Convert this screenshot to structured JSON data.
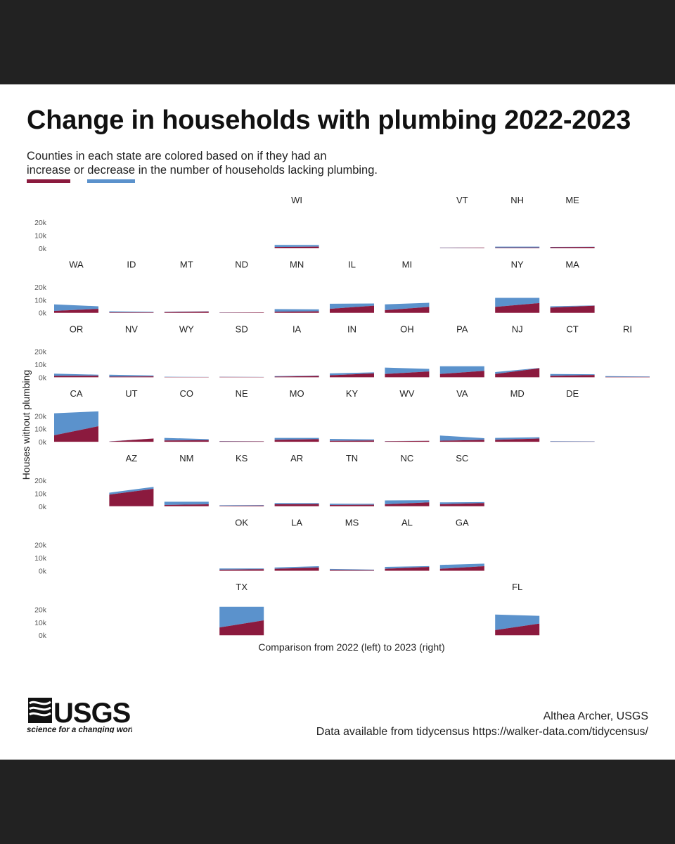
{
  "title": "Change in households with plumbing 2022-2023",
  "subtitle": {
    "line1": "Counties in each state are colored based on if they had an",
    "increase_word": "increase",
    "or_word": " or ",
    "decrease_word": "decrease",
    "line2_rest": " in the number of households lacking plumbing."
  },
  "colors": {
    "increase": "#8B1A3E",
    "decrease": "#5B92CC",
    "background": "#ffffff",
    "frame": "#222222"
  },
  "chart_data": {
    "type": "area",
    "layout": "state-grid small multiples (stacked area, 2 points each)",
    "x": [
      2022,
      2023
    ],
    "xlabel": "Comparison from 2022 (left) to 2023 (right)",
    "ylabel": "Houses without plumbing",
    "ylim": [
      0,
      25000
    ],
    "yticks": [
      "0k",
      "10k",
      "20k"
    ],
    "series_names": [
      "increase",
      "decrease"
    ],
    "states": [
      {
        "st": "WI",
        "row": 0,
        "col": 5,
        "inc": [
          1000,
          1300
        ],
        "dec": [
          1600,
          1200
        ]
      },
      {
        "st": "VT",
        "row": 0,
        "col": 8,
        "inc": [
          200,
          400
        ],
        "dec": [
          300,
          100
        ]
      },
      {
        "st": "NH",
        "row": 0,
        "col": 9,
        "inc": [
          400,
          500
        ],
        "dec": [
          900,
          800
        ]
      },
      {
        "st": "ME",
        "row": 0,
        "col": 10,
        "inc": [
          800,
          1000
        ],
        "dec": [
          300,
          200
        ]
      },
      {
        "st": "WA",
        "row": 1,
        "col": 1,
        "inc": [
          1500,
          3000
        ],
        "dec": [
          5000,
          2000
        ]
      },
      {
        "st": "ID",
        "row": 1,
        "col": 2,
        "inc": [
          300,
          300
        ],
        "dec": [
          800,
          400
        ]
      },
      {
        "st": "MT",
        "row": 1,
        "col": 3,
        "inc": [
          500,
          900
        ],
        "dec": [
          300,
          200
        ]
      },
      {
        "st": "ND",
        "row": 1,
        "col": 4,
        "inc": [
          200,
          300
        ],
        "dec": [
          100,
          100
        ]
      },
      {
        "st": "MN",
        "row": 1,
        "col": 5,
        "inc": [
          800,
          1100
        ],
        "dec": [
          2000,
          1500
        ]
      },
      {
        "st": "IL",
        "row": 1,
        "col": 6,
        "inc": [
          3000,
          5500
        ],
        "dec": [
          4000,
          1700
        ]
      },
      {
        "st": "MI",
        "row": 1,
        "col": 7,
        "inc": [
          2000,
          4500
        ],
        "dec": [
          4500,
          3200
        ]
      },
      {
        "st": "NY",
        "row": 1,
        "col": 9,
        "inc": [
          4500,
          7500
        ],
        "dec": [
          7000,
          4000
        ]
      },
      {
        "st": "MA",
        "row": 1,
        "col": 10,
        "inc": [
          4000,
          5500
        ],
        "dec": [
          1000,
          200
        ]
      },
      {
        "st": "OR",
        "row": 2,
        "col": 1,
        "inc": [
          1000,
          1200
        ],
        "dec": [
          1800,
          800
        ]
      },
      {
        "st": "NV",
        "row": 2,
        "col": 2,
        "inc": [
          500,
          700
        ],
        "dec": [
          1500,
          700
        ]
      },
      {
        "st": "WY",
        "row": 2,
        "col": 3,
        "inc": [
          200,
          200
        ],
        "dec": [
          200,
          100
        ]
      },
      {
        "st": "SD",
        "row": 2,
        "col": 4,
        "inc": [
          300,
          200
        ],
        "dec": [
          100,
          100
        ]
      },
      {
        "st": "IA",
        "row": 2,
        "col": 5,
        "inc": [
          500,
          1000
        ],
        "dec": [
          400,
          300
        ]
      },
      {
        "st": "IN",
        "row": 2,
        "col": 6,
        "inc": [
          1500,
          3000
        ],
        "dec": [
          1500,
          800
        ]
      },
      {
        "st": "OH",
        "row": 2,
        "col": 7,
        "inc": [
          2500,
          4500
        ],
        "dec": [
          5000,
          2000
        ]
      },
      {
        "st": "PA",
        "row": 2,
        "col": 8,
        "inc": [
          2500,
          5000
        ],
        "dec": [
          6000,
          3500
        ]
      },
      {
        "st": "NJ",
        "row": 2,
        "col": 9,
        "inc": [
          2500,
          7000
        ],
        "dec": [
          1500,
          200
        ]
      },
      {
        "st": "CT",
        "row": 2,
        "col": 10,
        "inc": [
          1000,
          1800
        ],
        "dec": [
          1500,
          500
        ]
      },
      {
        "st": "RI",
        "row": 2,
        "col": 11,
        "inc": [
          300,
          300
        ],
        "dec": [
          600,
          300
        ]
      },
      {
        "st": "CA",
        "row": 3,
        "col": 1,
        "inc": [
          5000,
          12000
        ],
        "dec": [
          17000,
          11500
        ]
      },
      {
        "st": "UT",
        "row": 3,
        "col": 2,
        "inc": [
          200,
          2500
        ],
        "dec": [
          100,
          100
        ]
      },
      {
        "st": "CO",
        "row": 3,
        "col": 3,
        "inc": [
          1000,
          1200
        ],
        "dec": [
          2000,
          800
        ]
      },
      {
        "st": "NE",
        "row": 3,
        "col": 4,
        "inc": [
          300,
          300
        ],
        "dec": [
          200,
          100
        ]
      },
      {
        "st": "MO",
        "row": 3,
        "col": 5,
        "inc": [
          1500,
          2000
        ],
        "dec": [
          1500,
          1000
        ]
      },
      {
        "st": "KY",
        "row": 3,
        "col": 6,
        "inc": [
          700,
          1000
        ],
        "dec": [
          1500,
          800
        ]
      },
      {
        "st": "WV",
        "row": 3,
        "col": 7,
        "inc": [
          400,
          700
        ],
        "dec": [
          100,
          100
        ]
      },
      {
        "st": "VA",
        "row": 3,
        "col": 8,
        "inc": [
          800,
          1500
        ],
        "dec": [
          4000,
          1300
        ]
      },
      {
        "st": "MD",
        "row": 3,
        "col": 9,
        "inc": [
          1500,
          2500
        ],
        "dec": [
          1500,
          1000
        ]
      },
      {
        "st": "DE",
        "row": 3,
        "col": 10,
        "inc": [
          100,
          100
        ],
        "dec": [
          400,
          300
        ]
      },
      {
        "st": "AZ",
        "row": 4,
        "col": 2,
        "inc": [
          9000,
          13500
        ],
        "dec": [
          1500,
          1500
        ]
      },
      {
        "st": "NM",
        "row": 4,
        "col": 3,
        "inc": [
          1000,
          1500
        ],
        "dec": [
          2500,
          2000
        ]
      },
      {
        "st": "KS",
        "row": 4,
        "col": 4,
        "inc": [
          400,
          600
        ],
        "dec": [
          400,
          400
        ]
      },
      {
        "st": "AR",
        "row": 4,
        "col": 5,
        "inc": [
          1500,
          1700
        ],
        "dec": [
          1000,
          800
        ]
      },
      {
        "st": "TN",
        "row": 4,
        "col": 6,
        "inc": [
          1000,
          1200
        ],
        "dec": [
          1000,
          700
        ]
      },
      {
        "st": "NC",
        "row": 4,
        "col": 7,
        "inc": [
          1500,
          3000
        ],
        "dec": [
          3000,
          1700
        ]
      },
      {
        "st": "SC",
        "row": 4,
        "col": 8,
        "inc": [
          1500,
          2500
        ],
        "dec": [
          1500,
          700
        ]
      },
      {
        "st": "OK",
        "row": 5,
        "col": 4,
        "inc": [
          800,
          1200
        ],
        "dec": [
          1000,
          600
        ]
      },
      {
        "st": "LA",
        "row": 5,
        "col": 5,
        "inc": [
          1500,
          2500
        ],
        "dec": [
          1000,
          1000
        ]
      },
      {
        "st": "MS",
        "row": 5,
        "col": 6,
        "inc": [
          700,
          500
        ],
        "dec": [
          700,
          400
        ]
      },
      {
        "st": "AL",
        "row": 5,
        "col": 7,
        "inc": [
          1500,
          3000
        ],
        "dec": [
          1500,
          600
        ]
      },
      {
        "st": "GA",
        "row": 5,
        "col": 8,
        "inc": [
          1500,
          3500
        ],
        "dec": [
          3000,
          2000
        ]
      },
      {
        "st": "TX",
        "row": 6,
        "col": 4,
        "inc": [
          6000,
          11500
        ],
        "dec": [
          16000,
          10500
        ]
      },
      {
        "st": "FL",
        "row": 6,
        "col": 9,
        "inc": [
          4000,
          9000
        ],
        "dec": [
          12000,
          6000
        ]
      }
    ]
  },
  "footer": {
    "logo_text": "USGS",
    "logo_tagline": "science for a changing world",
    "credit_line1": "Althea Archer, USGS",
    "credit_line2": "Data available from tidycensus https://walker-data.com/tidycensus/"
  }
}
